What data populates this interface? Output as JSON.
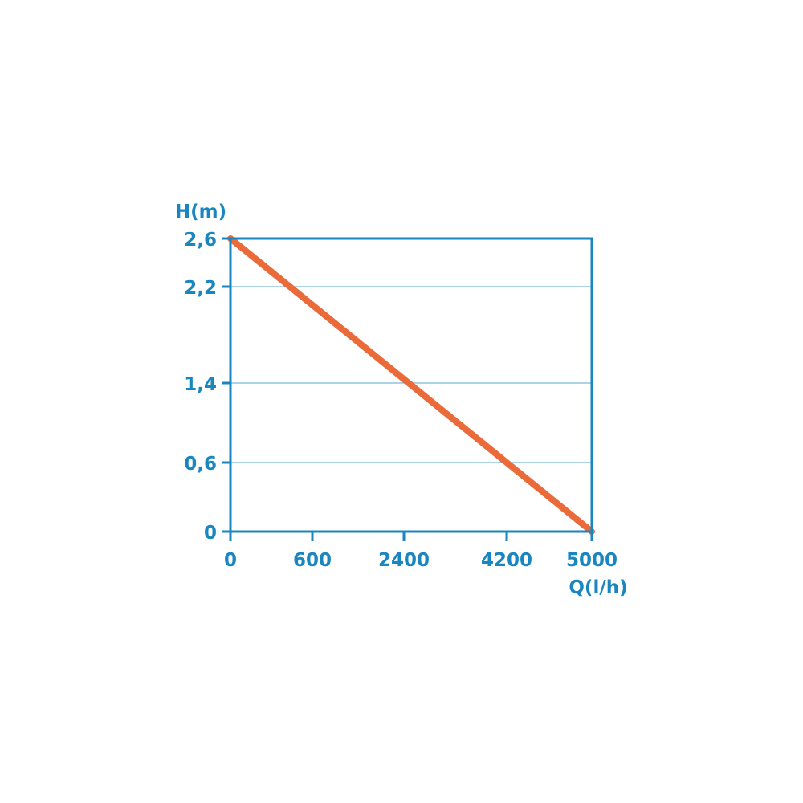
{
  "chart_data": {
    "type": "line",
    "title": "",
    "xlabel": "Q(l/h)",
    "ylabel": "H(m)",
    "x_ticks": [
      "0",
      "600",
      "2400",
      "4200",
      "5000"
    ],
    "y_ticks": [
      "0",
      "0,6",
      "1,4",
      "2,2",
      "2,6"
    ],
    "xlim": [
      0,
      5000
    ],
    "ylim": [
      0,
      2.6
    ],
    "grid": true,
    "series": [
      {
        "points": [
          {
            "x": 0,
            "y": 2.6
          },
          {
            "x": 5000,
            "y": 0
          }
        ]
      }
    ],
    "colors": {
      "axis": "#1a86c0",
      "grid": "#5aa6d2",
      "line": "#ea6a3a",
      "text": "#1a86c0"
    }
  }
}
